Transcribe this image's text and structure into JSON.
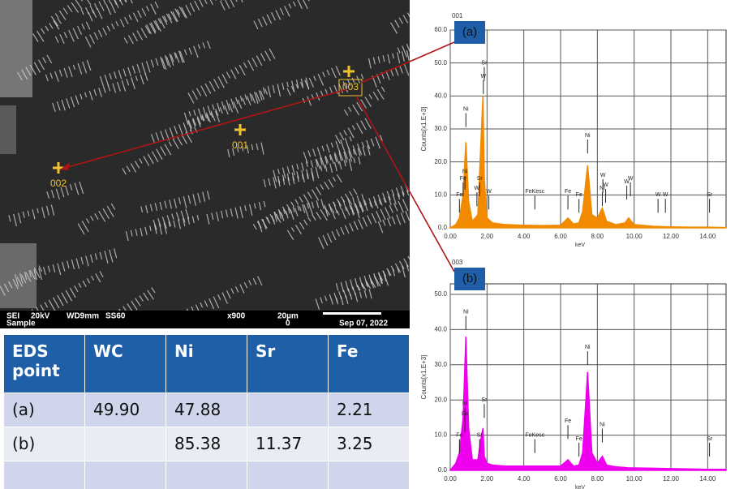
{
  "sem_image": {
    "markers": [
      "001",
      "002",
      "003"
    ],
    "info_bar": {
      "mode": "SEI",
      "voltage": "20kV",
      "wd": "WD9mm",
      "ss": "SS60",
      "mag": "x900",
      "scale": "20µm",
      "scale_zero": "0",
      "date": "Sep 07, 2022",
      "detector": "Sample"
    }
  },
  "table": {
    "header": [
      "EDS point",
      "WC",
      "Ni",
      "Sr",
      "Fe"
    ],
    "rows": [
      [
        "(a)",
        "49.90",
        "47.88",
        null,
        "2.21"
      ],
      [
        "(b)",
        null,
        "85.38",
        "11.37",
        "3.25"
      ]
    ]
  },
  "chart_data": [
    {
      "type": "line",
      "title": "001",
      "panel_label": "(a)",
      "x_label": "keV",
      "y_label": "Counts[x1.E+3]",
      "color": "#f28a00",
      "x": [
        0,
        0.3,
        0.5,
        0.7,
        0.85,
        1.0,
        1.2,
        1.5,
        1.7,
        1.78,
        1.85,
        2.0,
        2.3,
        3,
        4,
        5,
        6,
        6.4,
        6.7,
        7,
        7.2,
        7.47,
        7.7,
        8.0,
        8.27,
        8.5,
        9,
        9.5,
        9.7,
        10,
        11,
        12,
        13,
        14,
        15
      ],
      "values": [
        0,
        1,
        3,
        10,
        26,
        8,
        2,
        4,
        30,
        40,
        15,
        3,
        1.5,
        1,
        0.8,
        0.7,
        0.8,
        3,
        1.2,
        1.5,
        5,
        19,
        4,
        3,
        6,
        2,
        1,
        1.5,
        3,
        1,
        0.5,
        0.3,
        0.2,
        0.2,
        0.1
      ],
      "xlim": [
        0,
        15
      ],
      "ylim": [
        0,
        60
      ],
      "xticks": [
        {
          "value": 0,
          "label": "0.00"
        },
        {
          "value": 2,
          "label": "2.00"
        },
        {
          "value": 4,
          "label": "4.00"
        },
        {
          "value": 6,
          "label": "6.00"
        },
        {
          "value": 8,
          "label": "8.00"
        },
        {
          "value": 10,
          "label": "10.00"
        },
        {
          "value": 12,
          "label": "12.00"
        },
        {
          "value": 14,
          "label": "14.00"
        }
      ],
      "yticks": [
        {
          "value": 0,
          "label": "0.0"
        },
        {
          "value": 10,
          "label": "10.0"
        },
        {
          "value": 20,
          "label": "20.0"
        },
        {
          "value": 30,
          "label": "30.0"
        },
        {
          "value": 40,
          "label": "40.0"
        },
        {
          "value": 50,
          "label": "50.0"
        },
        {
          "value": 60,
          "label": "60.0"
        }
      ],
      "grid": true,
      "annotations": [
        {
          "text": "Ni",
          "x": 0.85,
          "y": 36
        },
        {
          "text": "Sr",
          "x": 1.85,
          "y": 50
        },
        {
          "text": "W",
          "x": 1.8,
          "y": 46
        },
        {
          "text": "Ni",
          "x": 0.8,
          "y": 17
        },
        {
          "text": "Fe",
          "x": 0.7,
          "y": 15
        },
        {
          "text": "Fe",
          "x": 0.5,
          "y": 10
        },
        {
          "text": "Sr",
          "x": 1.6,
          "y": 15
        },
        {
          "text": "W",
          "x": 1.45,
          "y": 12
        },
        {
          "text": "W",
          "x": 2.1,
          "y": 11
        },
        {
          "text": "FeKesc",
          "x": 4.6,
          "y": 11
        },
        {
          "text": "Fe",
          "x": 6.4,
          "y": 11
        },
        {
          "text": "Fe",
          "x": 7.0,
          "y": 10
        },
        {
          "text": "Ni",
          "x": 7.47,
          "y": 28
        },
        {
          "text": "W",
          "x": 8.3,
          "y": 16
        },
        {
          "text": "W",
          "x": 8.45,
          "y": 13
        },
        {
          "text": "Ni",
          "x": 8.27,
          "y": 12
        },
        {
          "text": "W",
          "x": 9.6,
          "y": 14
        },
        {
          "text": "W",
          "x": 9.8,
          "y": 15
        },
        {
          "text": "W",
          "x": 11.3,
          "y": 10
        },
        {
          "text": "W",
          "x": 11.7,
          "y": 10
        },
        {
          "text": "Sr",
          "x": 14.1,
          "y": 10
        }
      ]
    },
    {
      "type": "line",
      "title": "003",
      "panel_label": "(b)",
      "x_label": "keV",
      "y_label": "Counts[x1.E+3]",
      "color": "#ee00ee",
      "x": [
        0,
        0.3,
        0.5,
        0.7,
        0.85,
        1.0,
        1.2,
        1.5,
        1.7,
        1.78,
        1.85,
        2.0,
        2.3,
        3,
        4,
        5,
        6,
        6.4,
        6.7,
        7,
        7.2,
        7.47,
        7.7,
        8.0,
        8.27,
        8.5,
        9,
        9.5,
        9.7,
        10,
        11,
        12,
        13,
        14,
        15
      ],
      "values": [
        0,
        2,
        5,
        15,
        38,
        12,
        3,
        3,
        10,
        12,
        4,
        2,
        1.5,
        1.2,
        1.2,
        1.2,
        1.2,
        3,
        1.2,
        1.5,
        5,
        28,
        5,
        2,
        4,
        1.5,
        1,
        0.8,
        0.7,
        0.7,
        0.6,
        0.5,
        0.4,
        0.3,
        0.3
      ],
      "xlim": [
        0,
        15
      ],
      "ylim": [
        0,
        53
      ],
      "xticks": [
        {
          "value": 0,
          "label": "0.00"
        },
        {
          "value": 2,
          "label": "2.00"
        },
        {
          "value": 4,
          "label": "4.00"
        },
        {
          "value": 6,
          "label": "6.00"
        },
        {
          "value": 8,
          "label": "8.00"
        },
        {
          "value": 10,
          "label": "10.00"
        },
        {
          "value": 12,
          "label": "12.00"
        },
        {
          "value": 14,
          "label": "14.00"
        }
      ],
      "yticks": [
        {
          "value": 0,
          "label": "0.0"
        },
        {
          "value": 10,
          "label": "10.0"
        },
        {
          "value": 20,
          "label": "20.0"
        },
        {
          "value": 30,
          "label": "30.0"
        },
        {
          "value": 40,
          "label": "40.0"
        },
        {
          "value": 50,
          "label": "50.0"
        }
      ],
      "grid": true,
      "annotations": [
        {
          "text": "Ni",
          "x": 0.85,
          "y": 45
        },
        {
          "text": "Ni",
          "x": 0.8,
          "y": 19
        },
        {
          "text": "Fe",
          "x": 0.8,
          "y": 16
        },
        {
          "text": "Sr",
          "x": 1.85,
          "y": 20
        },
        {
          "text": "Fe",
          "x": 0.5,
          "y": 10
        },
        {
          "text": "Sr",
          "x": 1.6,
          "y": 10
        },
        {
          "text": "FeKesc",
          "x": 4.6,
          "y": 10
        },
        {
          "text": "Fe",
          "x": 6.4,
          "y": 14
        },
        {
          "text": "Fe",
          "x": 7.0,
          "y": 9
        },
        {
          "text": "Ni",
          "x": 7.47,
          "y": 35
        },
        {
          "text": "Ni",
          "x": 8.27,
          "y": 13
        },
        {
          "text": "Sr",
          "x": 14.1,
          "y": 9
        }
      ]
    }
  ]
}
